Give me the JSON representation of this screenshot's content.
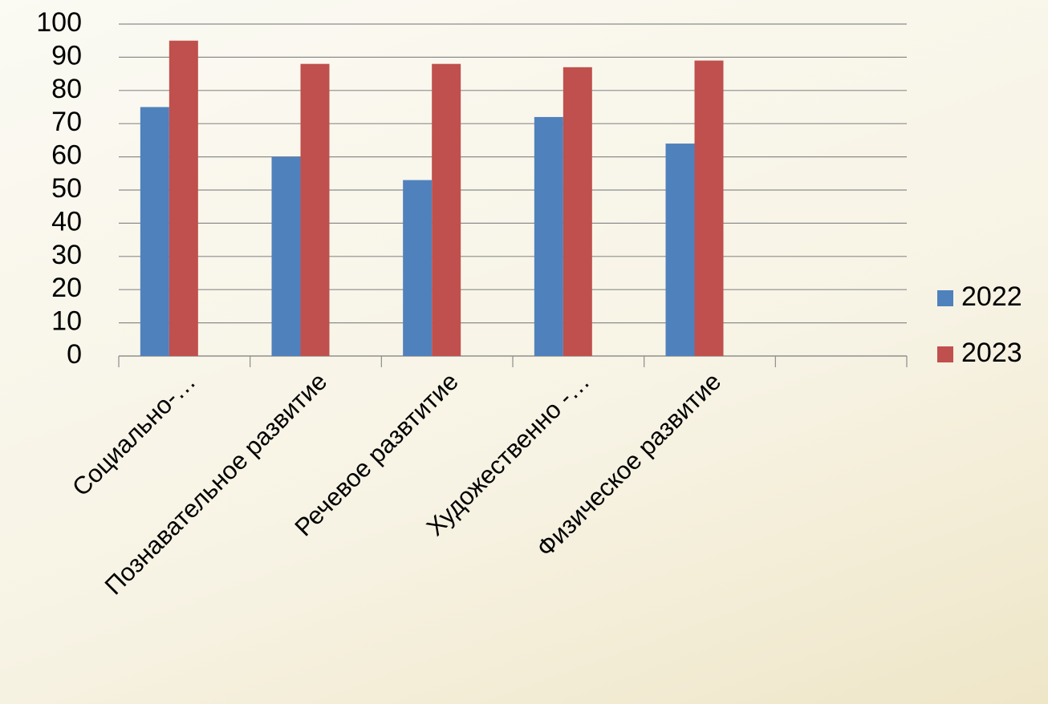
{
  "chart_data": {
    "type": "bar",
    "categories": [
      "Социально-…",
      "Познавательное развитие",
      "Речевое развтитие",
      "Художественно -…",
      "Физическое развитие",
      null
    ],
    "series": [
      {
        "name": "2022",
        "color": "#4f81bd",
        "values": [
          75,
          60,
          53,
          72,
          64,
          null
        ]
      },
      {
        "name": "2023",
        "color": "#c0504d",
        "values": [
          95,
          88,
          88,
          87,
          89,
          null
        ]
      }
    ],
    "ylim": [
      0,
      100
    ],
    "yticks": [
      0,
      10,
      20,
      30,
      40,
      50,
      60,
      70,
      80,
      90,
      100
    ],
    "grid": true,
    "legend": "right"
  }
}
